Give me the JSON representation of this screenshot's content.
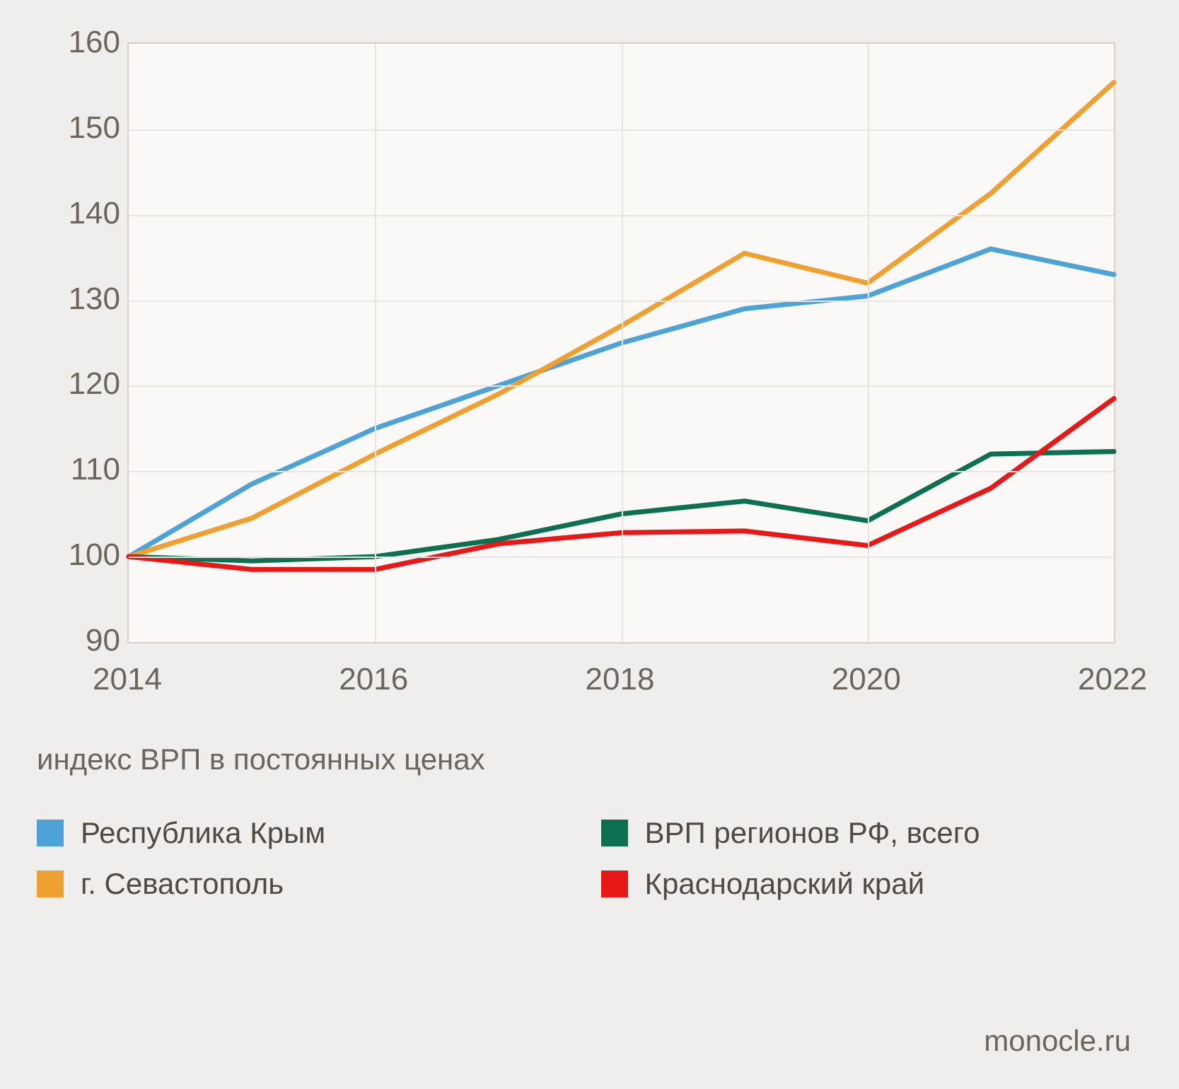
{
  "chart": {
    "type": "line",
    "background_color": "#f0eeec",
    "plot_background_color": "#faf9f7",
    "grid_color": "#e8e4df",
    "border_color": "#d5d0ca",
    "text_color": "#6b655e",
    "legend_text_color": "#4f4a44",
    "tick_fontsize": 44,
    "subtitle_fontsize": 42,
    "legend_fontsize": 42,
    "line_width": 7,
    "xlim": [
      2014,
      2022
    ],
    "ylim": [
      90,
      160
    ],
    "ytick_step": 10,
    "xtick_step": 2,
    "yticks": [
      90,
      100,
      110,
      120,
      130,
      140,
      150,
      160
    ],
    "xticks": [
      2014,
      2016,
      2018,
      2020,
      2022
    ],
    "x_values": [
      2014,
      2015,
      2016,
      2017,
      2018,
      2019,
      2020,
      2021,
      2022
    ],
    "series": [
      {
        "name": "Республика Крым",
        "color": "#4da3d6",
        "values": [
          100,
          108.5,
          115,
          120,
          125,
          129,
          130.5,
          136,
          133
        ]
      },
      {
        "name": "г. Севастополь",
        "color": "#f0a030",
        "values": [
          100,
          104.5,
          112,
          119,
          127,
          135.5,
          132,
          142.5,
          155.5
        ]
      },
      {
        "name": "ВРП регионов РФ, всего",
        "color": "#0d7050",
        "values": [
          100,
          99.5,
          100,
          102,
          105,
          106.5,
          104.2,
          112,
          112.3
        ]
      },
      {
        "name": "Краснодарский край",
        "color": "#e81818",
        "values": [
          100,
          98.5,
          98.5,
          101.5,
          102.8,
          103,
          101.3,
          108,
          118.5
        ]
      }
    ]
  },
  "subtitle": "индекс ВРП в постоянных ценах",
  "legend": {
    "items": [
      {
        "label": "Республика Крым",
        "color": "#4da3d6"
      },
      {
        "label": "ВРП регионов РФ, всего",
        "color": "#0d7050"
      },
      {
        "label": "г. Севастополь",
        "color": "#f0a030"
      },
      {
        "label": "Краснодарский край",
        "color": "#e81818"
      }
    ]
  },
  "source": "monocle.ru"
}
